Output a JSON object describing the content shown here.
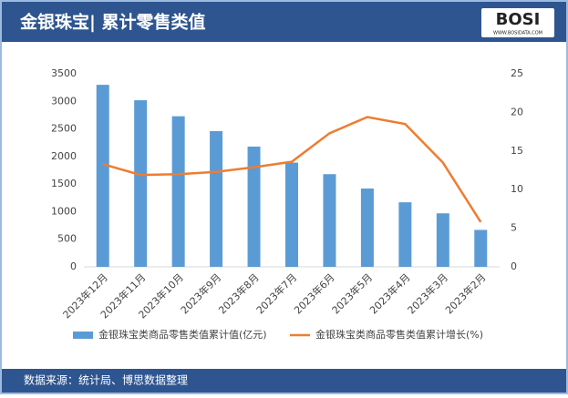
{
  "logo": {
    "text": "BOSI",
    "url": "WWW.BOSIDATA.COM"
  },
  "chart_data": {
    "type": "bar-line",
    "title": "金银珠宝| 累计零售类值",
    "source": "数据来源：统计局、博思数据整理",
    "categories": [
      "2023年12月",
      "2023年11月",
      "2023年10月",
      "2023年9月",
      "2023年8月",
      "2023年7月",
      "2023年6月",
      "2023年5月",
      "2023年4月",
      "2023年3月",
      "2023年2月"
    ],
    "series": [
      {
        "name": "金银珠宝类商品零售类值累计值(亿元)",
        "kind": "bar",
        "color": "#5b9bd5",
        "values": [
          3300,
          3020,
          2730,
          2460,
          2180,
          1890,
          1680,
          1420,
          1170,
          970,
          670
        ]
      },
      {
        "name": "金银珠宝类商品零售类值累计增长(%)",
        "kind": "line",
        "axis": "y2",
        "color": "#ed7d31",
        "values": [
          13.3,
          11.9,
          12.0,
          12.3,
          12.9,
          13.6,
          17.3,
          19.4,
          18.5,
          13.5,
          5.8
        ]
      }
    ],
    "ylim": [
      0,
      3500
    ],
    "yticks": [
      0,
      500,
      1000,
      1500,
      2000,
      2500,
      3000,
      3500
    ],
    "y2lim": [
      0,
      25
    ],
    "y2ticks": [
      0,
      5,
      10,
      15,
      20,
      25
    ],
    "grid": false,
    "legend": "bottom"
  }
}
